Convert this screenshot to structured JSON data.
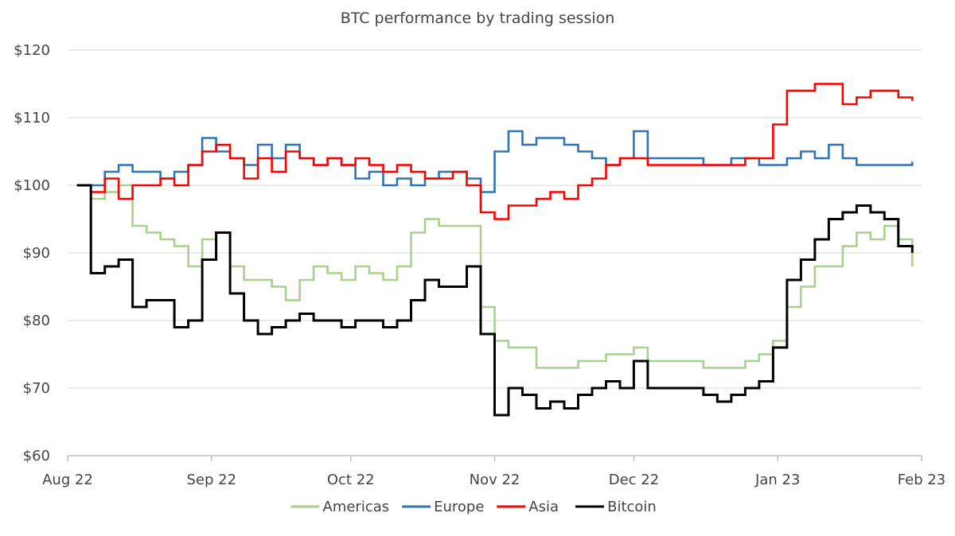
{
  "chart_data": {
    "type": "line",
    "title": "BTC performance by trading session",
    "xlabel": "",
    "ylabel": "",
    "ylim": [
      60,
      120
    ],
    "grid": true,
    "legend_position": "bottom",
    "y_ticks": [
      60,
      70,
      80,
      90,
      100,
      110,
      120
    ],
    "y_tick_labels": [
      "$60",
      "$70",
      "$80",
      "$90",
      "$100",
      "$110",
      "$120"
    ],
    "x_ticks": [
      "2022-08-01",
      "2022-09-01",
      "2022-10-01",
      "2022-11-01",
      "2022-12-01",
      "2023-01-01",
      "2023-02-01"
    ],
    "x_tick_labels": [
      "Aug 22",
      "Sep 22",
      "Oct 22",
      "Nov 22",
      "Dec 22",
      "Jan 23",
      "Feb 23"
    ],
    "xlim": [
      "2022-08-01",
      "2023-02-01"
    ],
    "series": [
      {
        "name": "Americas",
        "color": "#a9d18e",
        "x": [
          "2022-08-03",
          "2022-08-06",
          "2022-08-09",
          "2022-08-12",
          "2022-08-15",
          "2022-08-18",
          "2022-08-21",
          "2022-08-24",
          "2022-08-27",
          "2022-08-30",
          "2022-09-02",
          "2022-09-05",
          "2022-09-08",
          "2022-09-11",
          "2022-09-14",
          "2022-09-17",
          "2022-09-20",
          "2022-09-23",
          "2022-09-26",
          "2022-09-29",
          "2022-10-02",
          "2022-10-05",
          "2022-10-08",
          "2022-10-11",
          "2022-10-14",
          "2022-10-17",
          "2022-10-20",
          "2022-10-23",
          "2022-10-26",
          "2022-10-29",
          "2022-11-01",
          "2022-11-04",
          "2022-11-07",
          "2022-11-10",
          "2022-11-13",
          "2022-11-16",
          "2022-11-19",
          "2022-11-22",
          "2022-11-25",
          "2022-11-28",
          "2022-12-01",
          "2022-12-04",
          "2022-12-07",
          "2022-12-10",
          "2022-12-13",
          "2022-12-16",
          "2022-12-19",
          "2022-12-22",
          "2022-12-25",
          "2022-12-28",
          "2022-12-31",
          "2023-01-03",
          "2023-01-06",
          "2023-01-09",
          "2023-01-12",
          "2023-01-15",
          "2023-01-18",
          "2023-01-21",
          "2023-01-24",
          "2023-01-27",
          "2023-01-30"
        ],
        "values": [
          100,
          98,
          99,
          100,
          94,
          93,
          92,
          91,
          88,
          92,
          93,
          88,
          86,
          86,
          85,
          83,
          86,
          88,
          87,
          86,
          88,
          87,
          86,
          88,
          93,
          95,
          94,
          94,
          94,
          82,
          77,
          76,
          76,
          73,
          73,
          73,
          74,
          74,
          75,
          75,
          76,
          74,
          74,
          74,
          74,
          73,
          73,
          73,
          74,
          75,
          77,
          82,
          85,
          88,
          88,
          91,
          93,
          92,
          94,
          92,
          88
        ]
      },
      {
        "name": "Europe",
        "color": "#2e75b6",
        "x": [
          "2022-08-03",
          "2022-08-06",
          "2022-08-09",
          "2022-08-12",
          "2022-08-15",
          "2022-08-18",
          "2022-08-21",
          "2022-08-24",
          "2022-08-27",
          "2022-08-30",
          "2022-09-02",
          "2022-09-05",
          "2022-09-08",
          "2022-09-11",
          "2022-09-14",
          "2022-09-17",
          "2022-09-20",
          "2022-09-23",
          "2022-09-26",
          "2022-09-29",
          "2022-10-02",
          "2022-10-05",
          "2022-10-08",
          "2022-10-11",
          "2022-10-14",
          "2022-10-17",
          "2022-10-20",
          "2022-10-23",
          "2022-10-26",
          "2022-10-29",
          "2022-11-01",
          "2022-11-04",
          "2022-11-07",
          "2022-11-10",
          "2022-11-13",
          "2022-11-16",
          "2022-11-19",
          "2022-11-22",
          "2022-11-25",
          "2022-11-28",
          "2022-12-01",
          "2022-12-04",
          "2022-12-07",
          "2022-12-10",
          "2022-12-13",
          "2022-12-16",
          "2022-12-19",
          "2022-12-22",
          "2022-12-25",
          "2022-12-28",
          "2022-12-31",
          "2023-01-03",
          "2023-01-06",
          "2023-01-09",
          "2023-01-12",
          "2023-01-15",
          "2023-01-18",
          "2023-01-21",
          "2023-01-24",
          "2023-01-27",
          "2023-01-30"
        ],
        "values": [
          100,
          100,
          102,
          103,
          102,
          102,
          101,
          102,
          103,
          107,
          105,
          104,
          103,
          106,
          104,
          106,
          104,
          103,
          104,
          103,
          101,
          102,
          100,
          101,
          100,
          101,
          102,
          102,
          101,
          99,
          105,
          108,
          106,
          107,
          107,
          106,
          105,
          104,
          103,
          104,
          108,
          104,
          104,
          104,
          104,
          103,
          103,
          104,
          104,
          103,
          103,
          104,
          105,
          104,
          106,
          104,
          103,
          103,
          103,
          103,
          103.5
        ]
      },
      {
        "name": "Asia",
        "color": "#ff0000",
        "x": [
          "2022-08-03",
          "2022-08-06",
          "2022-08-09",
          "2022-08-12",
          "2022-08-15",
          "2022-08-18",
          "2022-08-21",
          "2022-08-24",
          "2022-08-27",
          "2022-08-30",
          "2022-09-02",
          "2022-09-05",
          "2022-09-08",
          "2022-09-11",
          "2022-09-14",
          "2022-09-17",
          "2022-09-20",
          "2022-09-23",
          "2022-09-26",
          "2022-09-29",
          "2022-10-02",
          "2022-10-05",
          "2022-10-08",
          "2022-10-11",
          "2022-10-14",
          "2022-10-17",
          "2022-10-20",
          "2022-10-23",
          "2022-10-26",
          "2022-10-29",
          "2022-11-01",
          "2022-11-04",
          "2022-11-07",
          "2022-11-10",
          "2022-11-13",
          "2022-11-16",
          "2022-11-19",
          "2022-11-22",
          "2022-11-25",
          "2022-11-28",
          "2022-12-01",
          "2022-12-04",
          "2022-12-07",
          "2022-12-10",
          "2022-12-13",
          "2022-12-16",
          "2022-12-19",
          "2022-12-22",
          "2022-12-25",
          "2022-12-28",
          "2022-12-31",
          "2023-01-03",
          "2023-01-06",
          "2023-01-09",
          "2023-01-12",
          "2023-01-15",
          "2023-01-18",
          "2023-01-21",
          "2023-01-24",
          "2023-01-27",
          "2023-01-30"
        ],
        "values": [
          100,
          99,
          101,
          98,
          100,
          100,
          101,
          100,
          103,
          105,
          106,
          104,
          101,
          104,
          102,
          105,
          104,
          103,
          104,
          103,
          104,
          103,
          102,
          103,
          102,
          101,
          101,
          102,
          100,
          96,
          95,
          97,
          97,
          98,
          99,
          98,
          100,
          101,
          103,
          104,
          104,
          103,
          103,
          103,
          103,
          103,
          103,
          103,
          104,
          104,
          109,
          114,
          114,
          115,
          115,
          112,
          113,
          114,
          114,
          113,
          112.5
        ]
      },
      {
        "name": "Bitcoin",
        "color": "#000000",
        "x": [
          "2022-08-03",
          "2022-08-06",
          "2022-08-09",
          "2022-08-12",
          "2022-08-15",
          "2022-08-18",
          "2022-08-21",
          "2022-08-24",
          "2022-08-27",
          "2022-08-30",
          "2022-09-02",
          "2022-09-05",
          "2022-09-08",
          "2022-09-11",
          "2022-09-14",
          "2022-09-17",
          "2022-09-20",
          "2022-09-23",
          "2022-09-26",
          "2022-09-29",
          "2022-10-02",
          "2022-10-05",
          "2022-10-08",
          "2022-10-11",
          "2022-10-14",
          "2022-10-17",
          "2022-10-20",
          "2022-10-23",
          "2022-10-26",
          "2022-10-29",
          "2022-11-01",
          "2022-11-04",
          "2022-11-07",
          "2022-11-10",
          "2022-11-13",
          "2022-11-16",
          "2022-11-19",
          "2022-11-22",
          "2022-11-25",
          "2022-11-28",
          "2022-12-01",
          "2022-12-04",
          "2022-12-07",
          "2022-12-10",
          "2022-12-13",
          "2022-12-16",
          "2022-12-19",
          "2022-12-22",
          "2022-12-25",
          "2022-12-28",
          "2022-12-31",
          "2023-01-03",
          "2023-01-06",
          "2023-01-09",
          "2023-01-12",
          "2023-01-15",
          "2023-01-18",
          "2023-01-21",
          "2023-01-24",
          "2023-01-27",
          "2023-01-30"
        ],
        "values": [
          100,
          87,
          88,
          89,
          82,
          83,
          83,
          79,
          80,
          89,
          93,
          84,
          80,
          78,
          79,
          80,
          81,
          80,
          80,
          79,
          80,
          80,
          79,
          80,
          83,
          86,
          85,
          85,
          88,
          78,
          66,
          70,
          69,
          67,
          68,
          67,
          69,
          70,
          71,
          70,
          74,
          70,
          70,
          70,
          70,
          69,
          68,
          69,
          70,
          71,
          76,
          86,
          89,
          92,
          95,
          96,
          97,
          96,
          95,
          91,
          90
        ]
      }
    ]
  }
}
